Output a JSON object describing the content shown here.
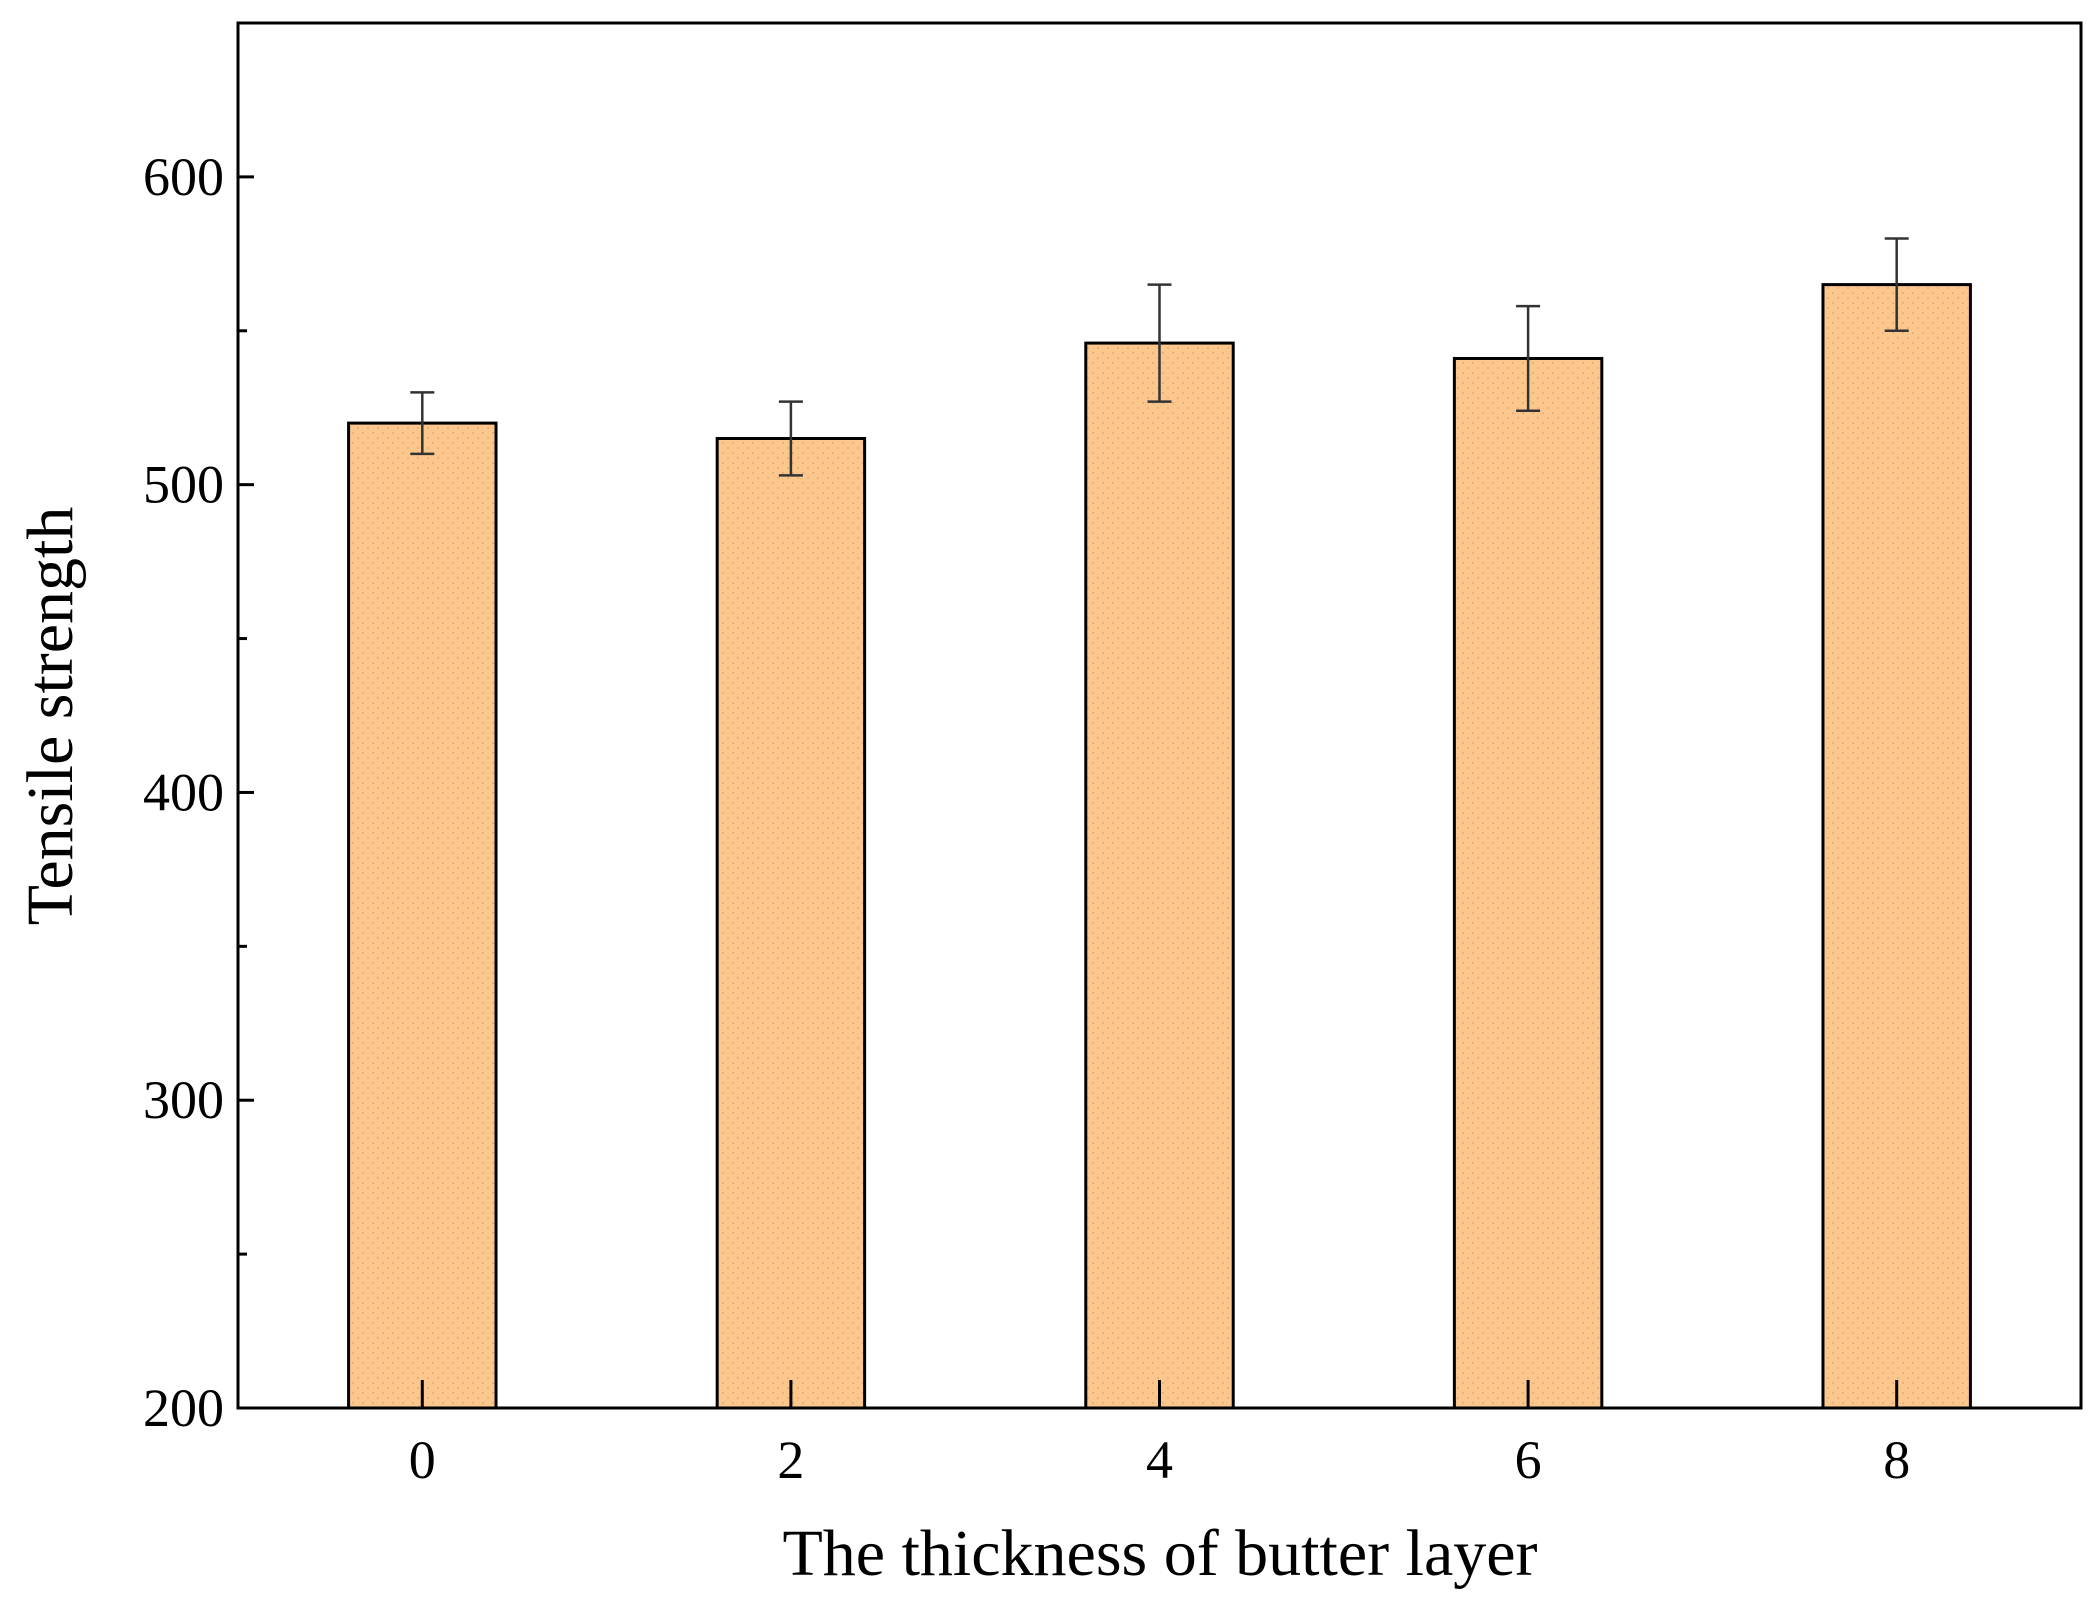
{
  "chart_data": {
    "type": "bar",
    "x_label": "The thickness of butter layer",
    "y_label": "Tensile strength",
    "categories": [
      "0",
      "2",
      "4",
      "6",
      "8"
    ],
    "values": [
      520,
      515,
      546,
      541,
      565
    ],
    "errors": [
      10,
      12,
      19,
      17,
      15
    ],
    "color": "#fcc78d",
    "ylim": [
      200,
      650
    ],
    "yticks": [
      200,
      300,
      400,
      500,
      600
    ],
    "yminorticks": [
      250,
      350,
      450,
      550
    ],
    "grid": false
  }
}
